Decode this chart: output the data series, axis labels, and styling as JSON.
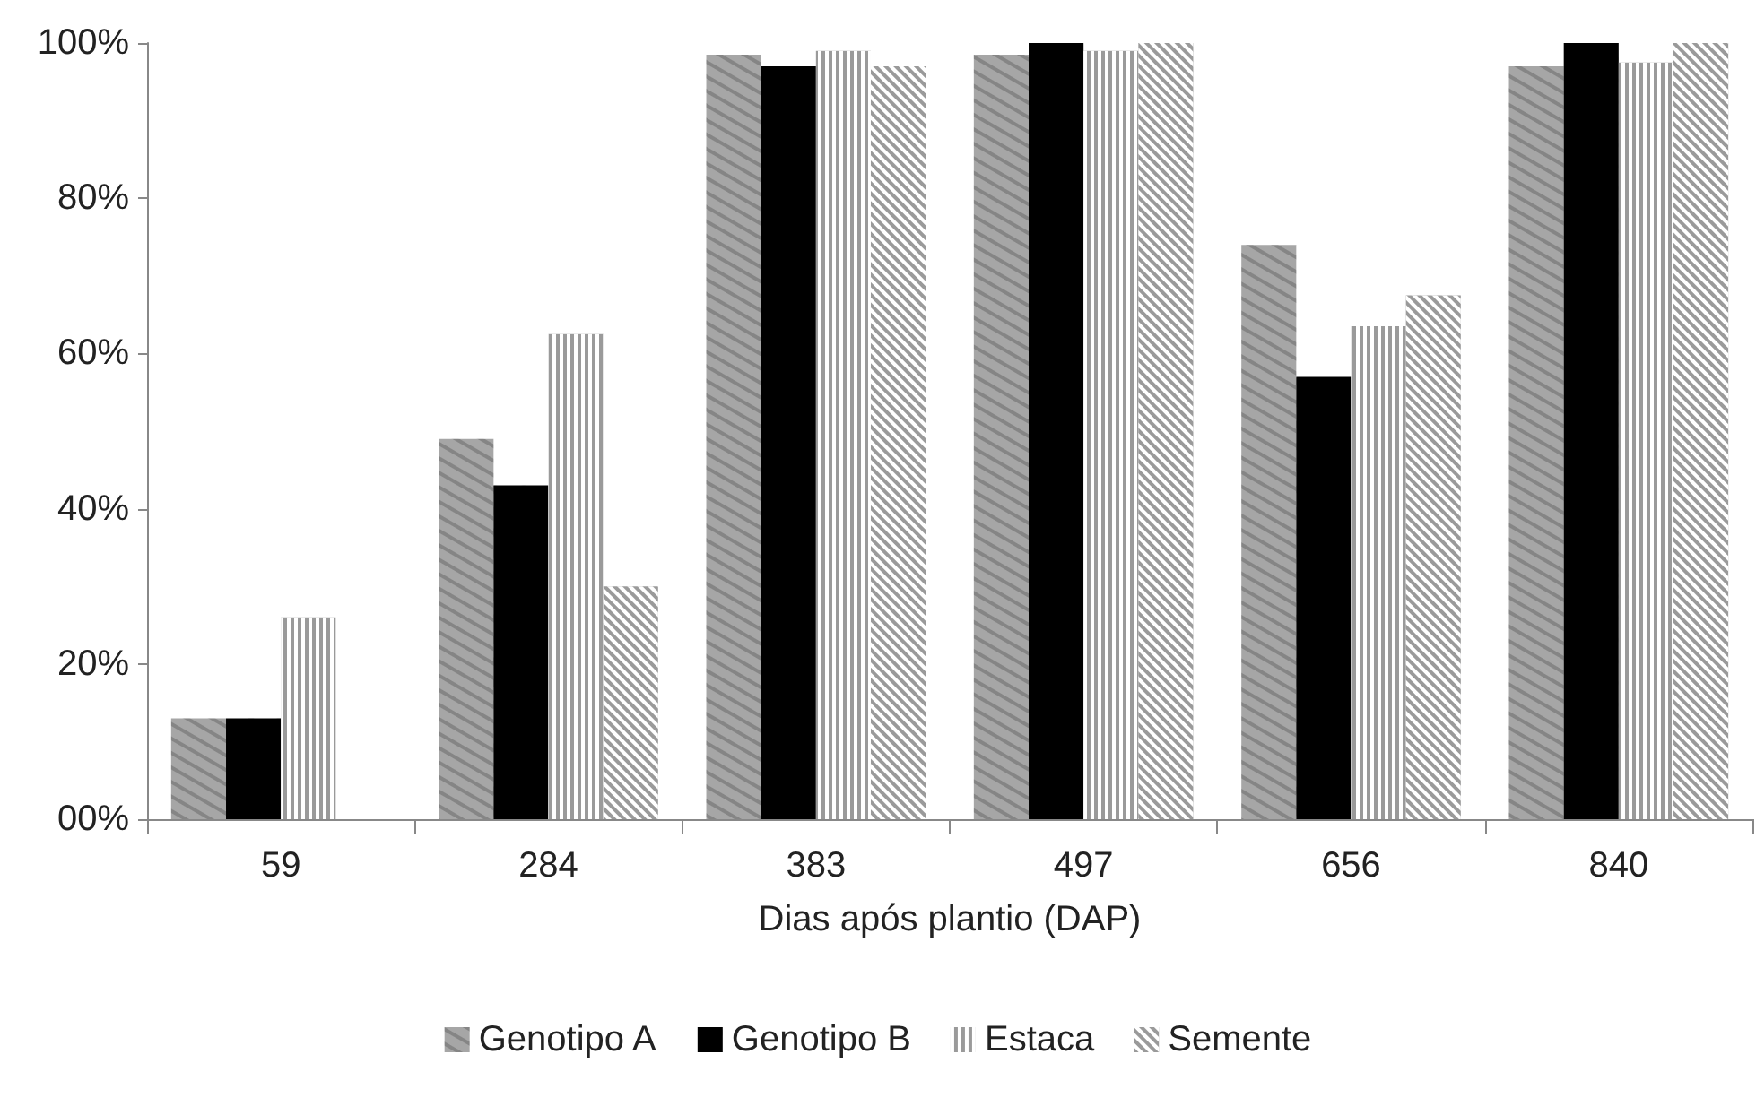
{
  "chart_data": {
    "type": "bar",
    "xlabel": "Dias após plantio (DAP)",
    "categories": [
      "59",
      "284",
      "383",
      "497",
      "656",
      "840"
    ],
    "series": [
      {
        "name": "Genotipo A",
        "color": "#a6a6a6",
        "values": [
          13,
          49,
          98.5,
          98.5,
          74,
          97
        ]
      },
      {
        "name": "Genotipo B",
        "color": "#000000",
        "values": [
          13,
          43,
          97,
          100,
          57,
          100
        ]
      },
      {
        "name": "Estaca",
        "color": "#9a9a9a",
        "values": [
          26,
          62.5,
          99,
          99,
          63.5,
          97.5
        ]
      },
      {
        "name": "Semente",
        "color": "#9a9a9a",
        "values": [
          0,
          30,
          97,
          100,
          67.5,
          100
        ]
      }
    ],
    "ylim": [
      0,
      100
    ],
    "yticks": [
      {
        "value": 0,
        "label": "00%"
      },
      {
        "value": 20,
        "label": "20%"
      },
      {
        "value": 40,
        "label": "40%"
      },
      {
        "value": 60,
        "label": "60%"
      },
      {
        "value": 80,
        "label": "80%"
      },
      {
        "value": 100,
        "label": "100%"
      }
    ],
    "grid": false,
    "legend": "bottom"
  }
}
